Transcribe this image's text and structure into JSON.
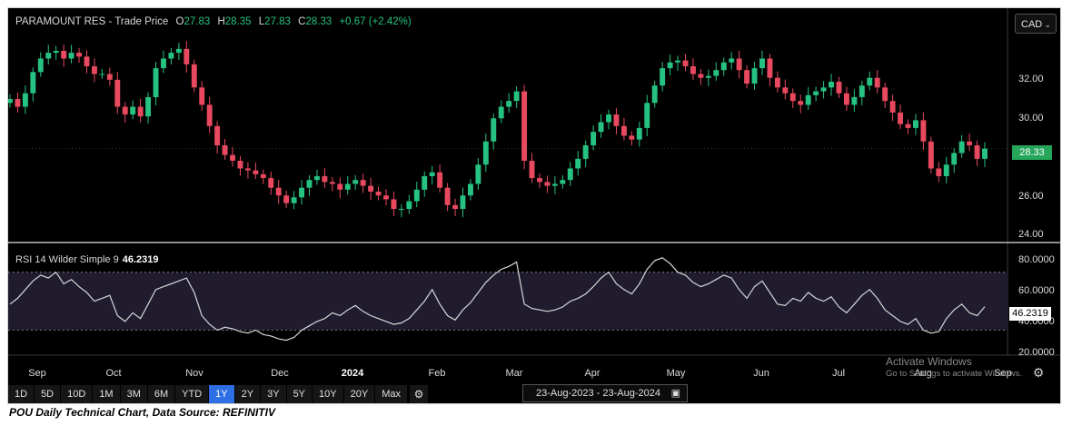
{
  "header": {
    "symbol": "PARAMOUNT RES",
    "separator": "-",
    "series": "Trade Price",
    "open_label": "O",
    "open": "27.83",
    "high_label": "H",
    "high": "28.35",
    "low_label": "L",
    "low": "27.83",
    "close_label": "C",
    "close": "28.33",
    "change": "+0.67 (+2.42%)"
  },
  "currency": {
    "value": "CAD",
    "chevron": "⌄"
  },
  "price_axis": {
    "ticks": [
      "32.00",
      "30.00",
      "28.00",
      "26.00",
      "24.00"
    ],
    "last_price": "28.33"
  },
  "rsi": {
    "label": "RSI 14 Wilder Simple 9",
    "value": "46.2319",
    "ticks": [
      "80.0000",
      "60.0000",
      "40.0000",
      "20.0000"
    ],
    "last_value": "46.2319"
  },
  "x_axis": {
    "labels": [
      "Sep",
      "Oct",
      "Nov",
      "Dec",
      "2024",
      "Feb",
      "Mar",
      "Apr",
      "May",
      "Jun",
      "Jul",
      "Aug",
      "Sep"
    ]
  },
  "watermark": {
    "line1": "Activate Windows",
    "line2": "Go to Settings to activate Windows."
  },
  "timeframes": {
    "buttons": [
      "1D",
      "5D",
      "10D",
      "1M",
      "3M",
      "6M",
      "YTD",
      "1Y",
      "2Y",
      "3Y",
      "5Y",
      "10Y",
      "20Y",
      "Max"
    ],
    "active": "1Y",
    "settings_icon": "gear-icon"
  },
  "date_range": {
    "from": "23-Aug-2023",
    "separator": "-",
    "to": "23-Aug-2024",
    "icon": "calendar-icon"
  },
  "caption": "POU Daily Technical Chart, Data Source: REFINITIV",
  "colors": {
    "up": "#26c281",
    "down": "#e8495f",
    "background": "#000000",
    "rsi_band": "#201c2e",
    "rsi_line": "#d6d6d6",
    "active_button": "#2e6fe6",
    "last_price_badge": "#26a65b"
  },
  "chart_data": [
    {
      "type": "candlestick",
      "ylim": [
        23.6,
        34.2
      ],
      "grid": false,
      "x_ticks": [
        "Sep",
        "Oct",
        "Nov",
        "Dec",
        "2024",
        "Feb",
        "Mar",
        "Apr",
        "May",
        "Jun",
        "Jul",
        "Aug",
        "Sep"
      ],
      "close_series": [
        30.9,
        30.5,
        31.2,
        32.3,
        33.0,
        33.3,
        33.4,
        33.0,
        33.3,
        33.1,
        32.6,
        32.2,
        32.2,
        31.9,
        30.5,
        30.1,
        30.5,
        30.0,
        31.0,
        32.5,
        33.0,
        33.3,
        33.5,
        32.7,
        31.5,
        30.6,
        29.5,
        28.5,
        28.0,
        27.7,
        27.3,
        27.2,
        27.0,
        26.8,
        26.3,
        25.9,
        25.5,
        25.8,
        26.3,
        26.7,
        26.9,
        26.6,
        26.5,
        26.2,
        26.5,
        26.7,
        26.4,
        26.1,
        25.9,
        25.7,
        25.2,
        25.2,
        25.6,
        26.2,
        26.9,
        27.1,
        26.3,
        25.4,
        25.2,
        25.9,
        26.5,
        27.5,
        28.7,
        29.9,
        30.5,
        30.8,
        31.3,
        27.7,
        26.8,
        26.6,
        26.4,
        26.5,
        26.7,
        27.3,
        27.8,
        28.5,
        29.2,
        29.7,
        30.1,
        29.5,
        29.0,
        28.8,
        29.4,
        30.7,
        31.6,
        32.5,
        32.8,
        32.9,
        32.6,
        32.2,
        32.0,
        32.1,
        32.4,
        32.8,
        33.0,
        32.4,
        31.7,
        32.5,
        33.0,
        32.0,
        31.5,
        31.2,
        30.8,
        30.6,
        31.1,
        31.3,
        31.5,
        31.8,
        31.2,
        30.6,
        31.0,
        31.6,
        32.0,
        31.5,
        30.8,
        30.2,
        29.6,
        29.4,
        29.8,
        28.7,
        27.3,
        26.9,
        27.5,
        28.1,
        28.7,
        28.5,
        27.8,
        28.33
      ]
    },
    {
      "type": "line",
      "ylim": [
        14,
        88
      ],
      "bands": [
        30,
        70
      ],
      "series": [
        {
          "values": [
            48,
            52,
            58,
            64,
            68,
            66,
            70,
            62,
            65,
            60,
            56,
            50,
            52,
            54,
            40,
            36,
            42,
            38,
            48,
            58,
            60,
            62,
            64,
            66,
            56,
            40,
            34,
            30,
            32,
            31,
            29,
            28,
            30,
            27,
            26,
            24,
            23,
            25,
            30,
            33,
            36,
            38,
            42,
            40,
            44,
            47,
            43,
            40,
            38,
            36,
            34,
            35,
            38,
            44,
            50,
            58,
            48,
            40,
            37,
            44,
            49,
            56,
            63,
            68,
            72,
            74,
            77,
            48,
            45,
            44,
            43,
            44,
            46,
            50,
            52,
            55,
            60,
            66,
            70,
            62,
            58,
            55,
            62,
            72,
            78,
            80,
            76,
            70,
            68,
            63,
            60,
            62,
            65,
            68,
            66,
            58,
            52,
            60,
            64,
            56,
            48,
            47,
            52,
            50,
            56,
            52,
            50,
            53,
            46,
            42,
            48,
            54,
            58,
            52,
            44,
            40,
            36,
            34,
            38,
            30,
            28,
            29,
            38,
            44,
            48,
            42,
            40,
            46.2319
          ]
        }
      ]
    }
  ]
}
